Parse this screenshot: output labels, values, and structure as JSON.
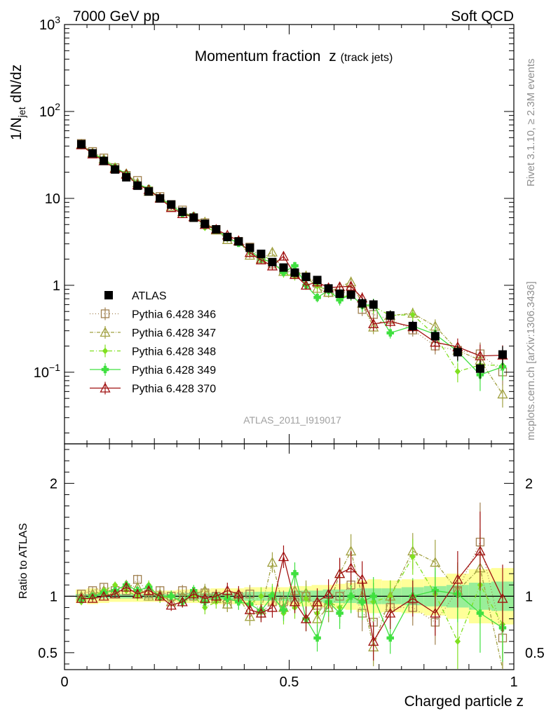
{
  "header": {
    "left": "7000 GeV pp",
    "right": "Soft QCD"
  },
  "sidebar": {
    "upper": "Rivet 3.1.10, ≥ 2.3M events",
    "lower": "mcplots.cern.ch [arXiv:1306.3436]"
  },
  "chart_data": {
    "type": "line",
    "title": "Momentum fraction",
    "title_var": "z",
    "title_sub": "(track jets)",
    "ylabel": "1/N_jet dN/dz",
    "ratio_ylabel": "Ratio to ATLAS",
    "xlabel": "Charged particle z",
    "analysis_tag": "ATLAS_2011_I919017",
    "xlim": [
      0,
      1
    ],
    "ylim": [
      0.015,
      1000
    ],
    "ratio_ylim": [
      0.35,
      2.35
    ],
    "x_ticks": [
      {
        "value": 0,
        "label": "0"
      },
      {
        "value": 0.5,
        "label": "0.5"
      },
      {
        "value": 1,
        "label": "1"
      }
    ],
    "y_ticks": [
      {
        "value": 1000,
        "base": "10",
        "exp": "3"
      },
      {
        "value": 100,
        "base": "10",
        "exp": "2"
      },
      {
        "value": 10,
        "base": "10",
        "exp": ""
      },
      {
        "value": 1,
        "base": "1",
        "exp": ""
      },
      {
        "value": 0.1,
        "base": "10",
        "exp": "−1"
      }
    ],
    "ratio_ticks": [
      {
        "value": 0.5,
        "label": "0.5"
      },
      {
        "value": 1,
        "label": "1"
      },
      {
        "value": 2,
        "label": "2"
      }
    ],
    "x": [
      0.0375,
      0.0625,
      0.0875,
      0.1125,
      0.1375,
      0.1625,
      0.1875,
      0.2125,
      0.2375,
      0.2625,
      0.2875,
      0.3125,
      0.3375,
      0.3625,
      0.3875,
      0.4125,
      0.4375,
      0.4625,
      0.4875,
      0.5125,
      0.5375,
      0.5625,
      0.5875,
      0.6125,
      0.6375,
      0.6625,
      0.6875,
      0.725,
      0.775,
      0.825,
      0.875,
      0.925,
      0.975
    ],
    "data": {
      "name": "ATLAS",
      "values": [
        42,
        33,
        27,
        21.5,
        17.5,
        14,
        12,
        10,
        8.5,
        7,
        6,
        5.1,
        4.4,
        3.6,
        3.2,
        2.7,
        2.3,
        1.85,
        1.6,
        1.4,
        1.25,
        1.15,
        0.92,
        0.8,
        0.78,
        0.62,
        0.6,
        0.45,
        0.34,
        0.26,
        0.17,
        0.11,
        0.16
      ],
      "stat_unc": [
        0.02,
        0.02,
        0.02,
        0.02,
        0.02,
        0.02,
        0.02,
        0.02,
        0.02,
        0.03,
        0.03,
        0.03,
        0.03,
        0.03,
        0.03,
        0.04,
        0.04,
        0.04,
        0.04,
        0.05,
        0.05,
        0.05,
        0.06,
        0.06,
        0.06,
        0.07,
        0.07,
        0.07,
        0.08,
        0.09,
        0.1,
        0.12,
        0.13
      ],
      "total_unc": [
        0.06,
        0.07,
        0.06,
        0.05,
        0.05,
        0.05,
        0.05,
        0.05,
        0.05,
        0.06,
        0.06,
        0.06,
        0.07,
        0.07,
        0.07,
        0.08,
        0.08,
        0.08,
        0.08,
        0.09,
        0.09,
        0.1,
        0.1,
        0.11,
        0.12,
        0.14,
        0.15,
        0.14,
        0.15,
        0.17,
        0.2,
        0.24,
        0.25
      ]
    },
    "series": [
      {
        "name": "Pythia 6.428 346",
        "color": "#a08050",
        "marker": "square",
        "dash": "1,3",
        "ratio": [
          1.02,
          1.05,
          1.08,
          1.05,
          1.05,
          1.15,
          1.02,
          1.05,
          1.0,
          1.05,
          1.0,
          1.03,
          1.0,
          0.93,
          1.0,
          1.02,
          0.85,
          0.95,
          0.95,
          0.95,
          1.0,
          0.92,
          0.9,
          1.0,
          1.1,
          0.85,
          0.77,
          0.9,
          0.9,
          0.77,
          1.05,
          1.48,
          0.63
        ],
        "errors": [
          0.03,
          0.03,
          0.03,
          0.03,
          0.03,
          0.04,
          0.04,
          0.04,
          0.05,
          0.05,
          0.05,
          0.06,
          0.06,
          0.07,
          0.07,
          0.08,
          0.08,
          0.09,
          0.1,
          0.1,
          0.11,
          0.12,
          0.13,
          0.14,
          0.15,
          0.16,
          0.17,
          0.14,
          0.16,
          0.2,
          0.25,
          0.35,
          0.3
        ]
      },
      {
        "name": "Pythia 6.428 347",
        "color": "#a0a040",
        "marker": "triangle",
        "dash": "5,2,1,2",
        "ratio": [
          1.0,
          1.02,
          1.05,
          1.05,
          1.1,
          1.08,
          1.0,
          1.02,
          0.95,
          1.0,
          1.02,
          1.05,
          0.98,
          0.93,
          1.0,
          0.82,
          0.88,
          1.3,
          0.9,
          1.05,
          1.03,
          0.8,
          0.9,
          1.2,
          1.4,
          1.0,
          0.55,
          1.0,
          1.4,
          1.3,
          1.05,
          1.25,
          0.35
        ],
        "errors": [
          0.03,
          0.03,
          0.03,
          0.03,
          0.03,
          0.04,
          0.04,
          0.04,
          0.05,
          0.05,
          0.05,
          0.06,
          0.06,
          0.07,
          0.07,
          0.08,
          0.08,
          0.09,
          0.1,
          0.1,
          0.11,
          0.12,
          0.13,
          0.14,
          0.15,
          0.16,
          0.17,
          0.14,
          0.16,
          0.2,
          0.25,
          0.35,
          0.3
        ]
      },
      {
        "name": "Pythia 6.428 348",
        "color": "#80e020",
        "marker": "diamond",
        "dash": "6,3,1,3",
        "ratio": [
          0.95,
          1.0,
          1.05,
          1.1,
          1.05,
          1.0,
          1.1,
          0.98,
          1.0,
          0.95,
          1.0,
          0.9,
          0.95,
          1.0,
          0.95,
          0.93,
          1.0,
          1.02,
          0.85,
          0.9,
          0.98,
          0.85,
          0.95,
          0.9,
          1.0,
          0.95,
          0.95,
          1.0,
          1.35,
          1.02,
          0.6,
          1.1,
          0.75
        ],
        "errors": [
          0.03,
          0.03,
          0.03,
          0.03,
          0.03,
          0.04,
          0.04,
          0.04,
          0.05,
          0.05,
          0.05,
          0.06,
          0.06,
          0.07,
          0.07,
          0.08,
          0.08,
          0.09,
          0.1,
          0.1,
          0.11,
          0.12,
          0.13,
          0.14,
          0.15,
          0.16,
          0.17,
          0.14,
          0.16,
          0.2,
          0.25,
          0.35,
          0.3
        ]
      },
      {
        "name": "Pythia 6.428 349",
        "color": "#40e040",
        "marker": "cross",
        "dash": "",
        "ratio": [
          0.97,
          1.0,
          1.03,
          1.05,
          1.1,
          1.05,
          1.08,
          1.0,
          1.0,
          0.95,
          1.05,
          0.95,
          1.0,
          0.98,
          0.95,
          0.93,
          0.87,
          1.0,
          0.88,
          1.2,
          0.8,
          0.63,
          0.95,
          0.85,
          1.0,
          0.95,
          1.0,
          0.63,
          1.0,
          1.05,
          1.02,
          0.85,
          0.72
        ],
        "errors": [
          0.03,
          0.03,
          0.03,
          0.03,
          0.03,
          0.04,
          0.04,
          0.04,
          0.05,
          0.05,
          0.05,
          0.06,
          0.06,
          0.07,
          0.07,
          0.08,
          0.08,
          0.09,
          0.1,
          0.1,
          0.11,
          0.12,
          0.13,
          0.14,
          0.15,
          0.16,
          0.17,
          0.14,
          0.16,
          0.2,
          0.25,
          0.35,
          0.3
        ]
      },
      {
        "name": "Pythia 6.428 370",
        "color": "#a01010",
        "marker": "triangle",
        "dash": "",
        "ratio": [
          0.98,
          0.98,
          1.0,
          1.02,
          1.08,
          1.02,
          1.05,
          1.0,
          0.92,
          0.95,
          1.02,
          0.98,
          1.0,
          1.05,
          1.02,
          0.88,
          0.85,
          0.9,
          1.35,
          0.95,
          0.8,
          0.95,
          1.02,
          1.2,
          1.25,
          1.15,
          0.6,
          0.85,
          0.98,
          0.85,
          1.15,
          1.4,
          0.98
        ],
        "errors": [
          0.03,
          0.03,
          0.03,
          0.03,
          0.03,
          0.04,
          0.04,
          0.04,
          0.05,
          0.05,
          0.05,
          0.06,
          0.06,
          0.07,
          0.07,
          0.08,
          0.08,
          0.09,
          0.1,
          0.1,
          0.11,
          0.12,
          0.13,
          0.14,
          0.15,
          0.16,
          0.17,
          0.14,
          0.16,
          0.2,
          0.25,
          0.35,
          0.3
        ]
      }
    ]
  }
}
